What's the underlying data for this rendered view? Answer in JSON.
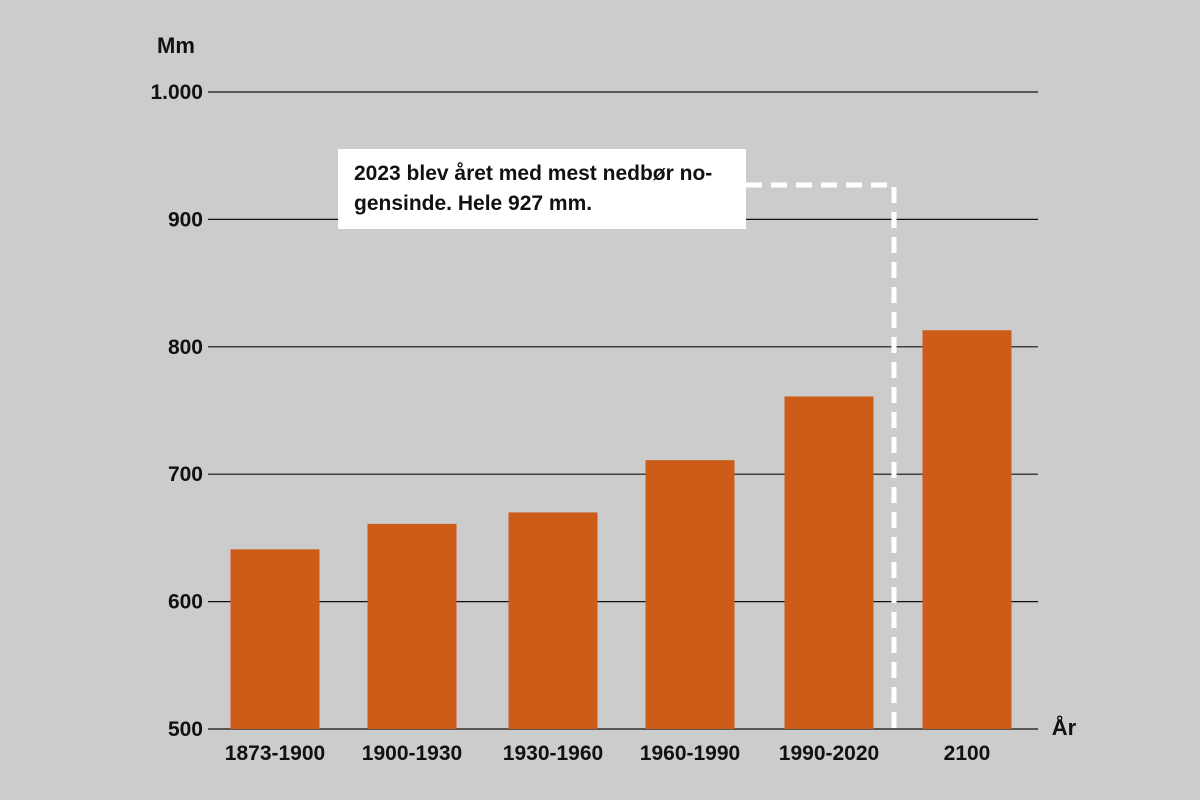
{
  "chart_data": {
    "type": "bar",
    "ylabel": "Mm",
    "xlabel": "År",
    "categories": [
      "1873-1900",
      "1900-1930",
      "1930-1960",
      "1960-1990",
      "1990-2020",
      "2100"
    ],
    "values": [
      641,
      661,
      670,
      711,
      761,
      813
    ],
    "ylim": [
      500,
      1000
    ],
    "yticks": [
      500,
      600,
      700,
      800,
      900,
      1000
    ],
    "ytick_labels": [
      "500",
      "600",
      "700",
      "800",
      "900",
      "1.000"
    ],
    "grid": true,
    "bar_color": "#cc5c17",
    "annotation": {
      "text": "2023 blev året med mest nedbør no-gensinde. Hele 927 mm.",
      "line1": "2023 blev året med mest nedbør no-",
      "line2": "gensinde. Hele 927 mm.",
      "value": 927
    }
  },
  "colors": {
    "background": "#cccccc",
    "bar": "#cc5c17",
    "gridline": "#111111",
    "callout_line": "#ffffff"
  }
}
